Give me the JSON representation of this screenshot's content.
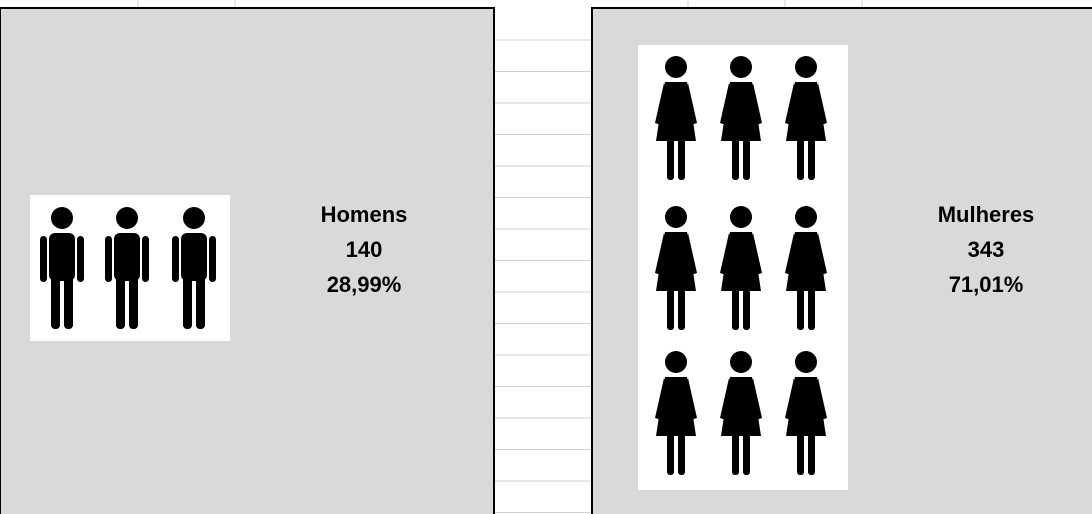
{
  "panels": [
    {
      "label": "Homens",
      "count": 140,
      "percent": "28,99%"
    },
    {
      "label": "Mulheres",
      "count": 343,
      "percent": "71,01%"
    }
  ]
}
